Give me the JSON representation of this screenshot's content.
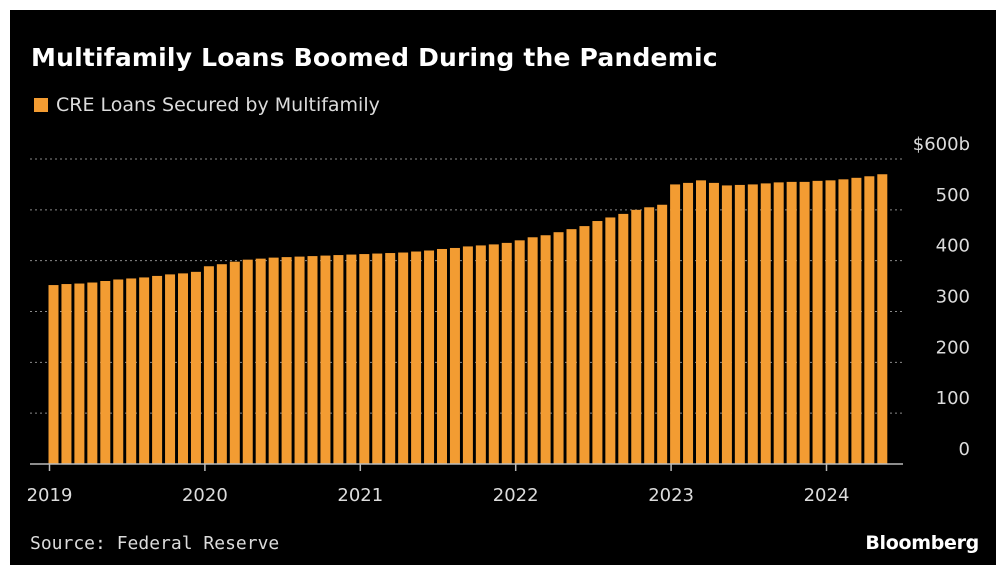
{
  "header": {
    "title": "Multifamily Loans Boomed During the Pandemic",
    "legend_label": "CRE Loans Secured by Multifamily"
  },
  "footer": {
    "source": "Source: Federal Reserve",
    "brand": "Bloomberg"
  },
  "colors": {
    "background": "#000000",
    "bar": "#f39c32",
    "text": "#dcdcdc",
    "grid": "#8a8a8a"
  },
  "chart_data": {
    "type": "bar",
    "title": "Multifamily Loans Boomed During the Pandemic",
    "series": [
      {
        "name": "CRE Loans Secured by Multifamily",
        "values": [
          352,
          354,
          355,
          357,
          360,
          363,
          365,
          367,
          370,
          373,
          375,
          378,
          389,
          393,
          398,
          402,
          404,
          406,
          407,
          408,
          409,
          410,
          411,
          412,
          413,
          414,
          415,
          416,
          418,
          420,
          423,
          425,
          428,
          430,
          432,
          435,
          440,
          446,
          450,
          456,
          462,
          468,
          478,
          485,
          492,
          500,
          505,
          510,
          550,
          553,
          558,
          553,
          548,
          549,
          550,
          552,
          554,
          555,
          555,
          557,
          558,
          560,
          563,
          566,
          570
        ]
      }
    ],
    "x_start": "2019-01",
    "x_step": "month",
    "x_ticks": [
      "2019",
      "2020",
      "2021",
      "2022",
      "2023",
      "2024"
    ],
    "y_ticks": [
      "0",
      "100",
      "200",
      "300",
      "400",
      "500",
      "$600b"
    ],
    "ylim": [
      0,
      600
    ],
    "y_axis_side": "right",
    "grid": true,
    "grid_style": "dotted",
    "legend": "top-left"
  }
}
